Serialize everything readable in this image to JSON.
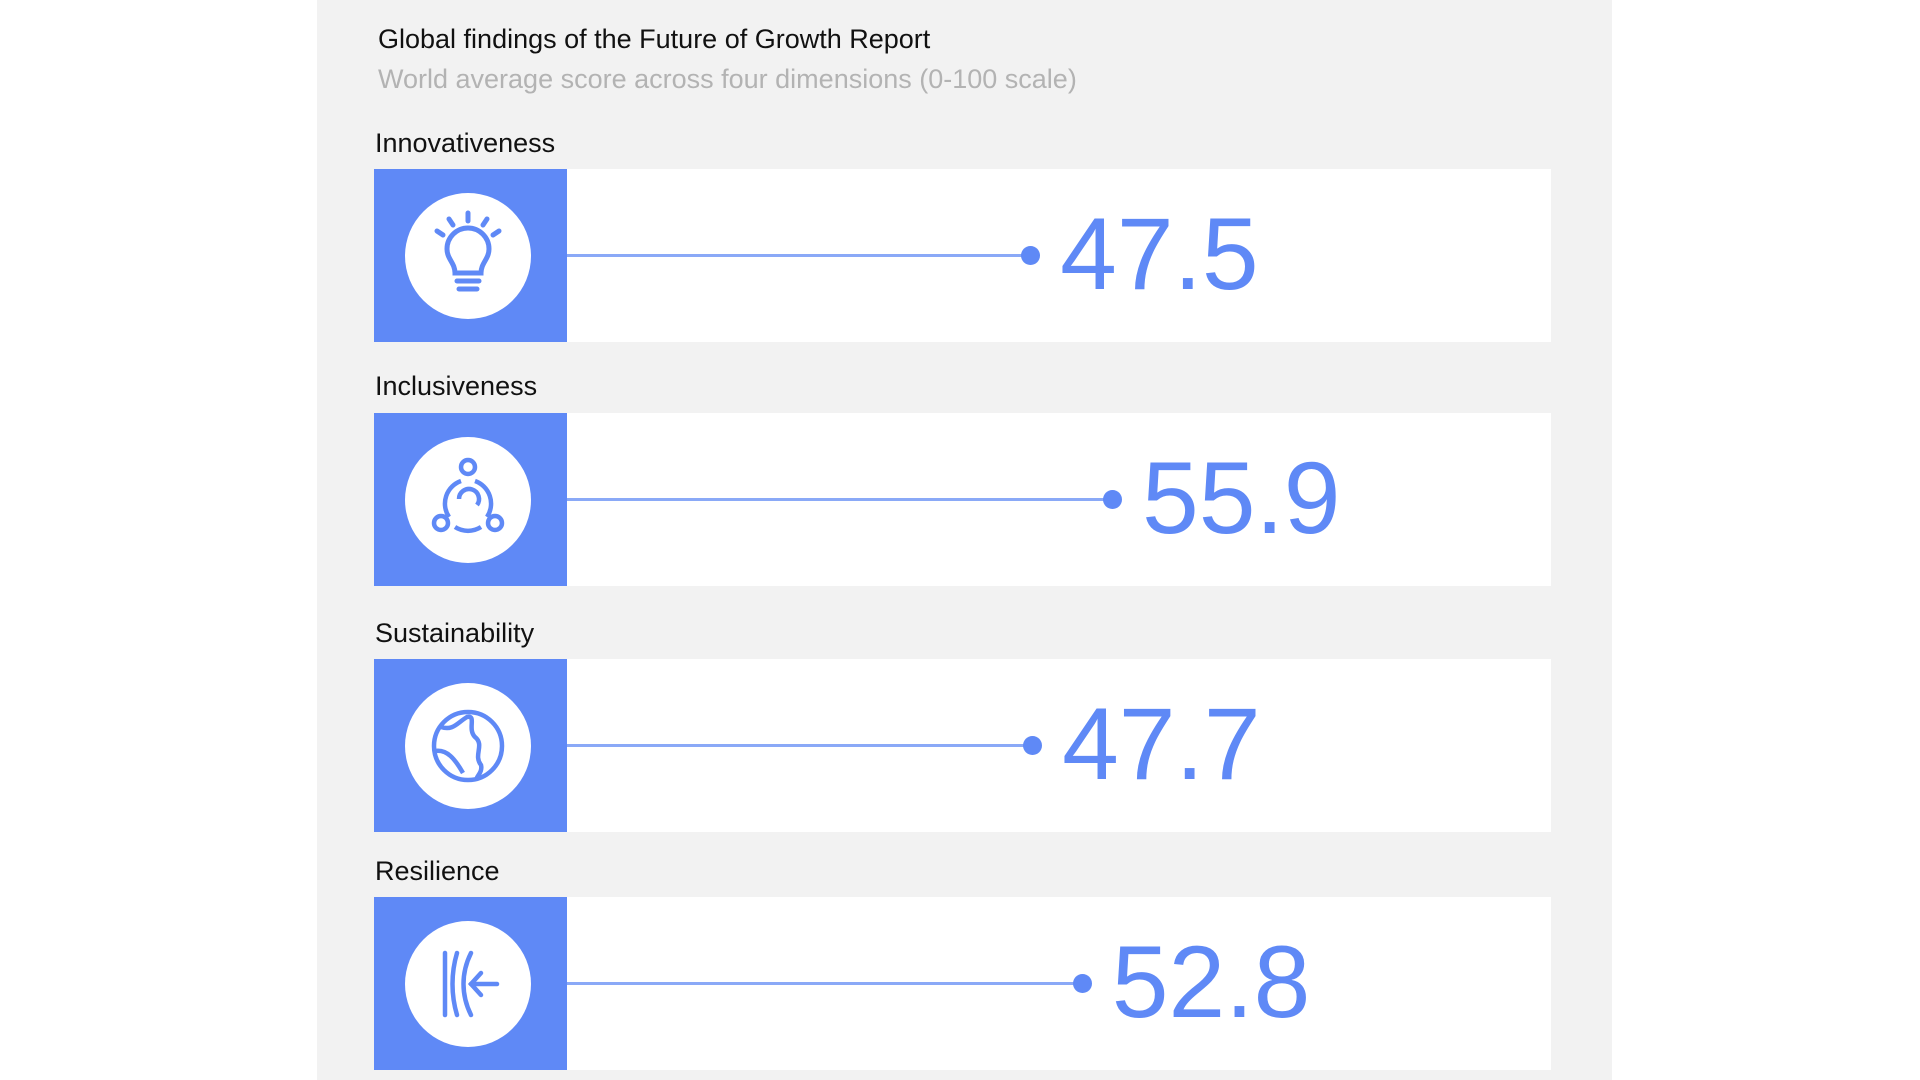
{
  "chart_data": {
    "type": "table",
    "title": "Global findings of the Future of Growth Report",
    "subtitle": "World average score across four dimensions (0-100 scale)",
    "xlim": [
      0,
      100
    ],
    "accent_color": "#5f89f6",
    "rows": [
      {
        "label": "Innovativeness",
        "value": 47.5,
        "display": "47.5",
        "icon": "lightbulb-icon"
      },
      {
        "label": "Inclusiveness",
        "value": 55.9,
        "display": "55.9",
        "icon": "people-circle-icon"
      },
      {
        "label": "Sustainability",
        "value": 47.7,
        "display": "47.7",
        "icon": "globe-icon"
      },
      {
        "label": "Resilience",
        "value": 52.8,
        "display": "52.8",
        "icon": "resilience-arrow-icon"
      }
    ]
  }
}
